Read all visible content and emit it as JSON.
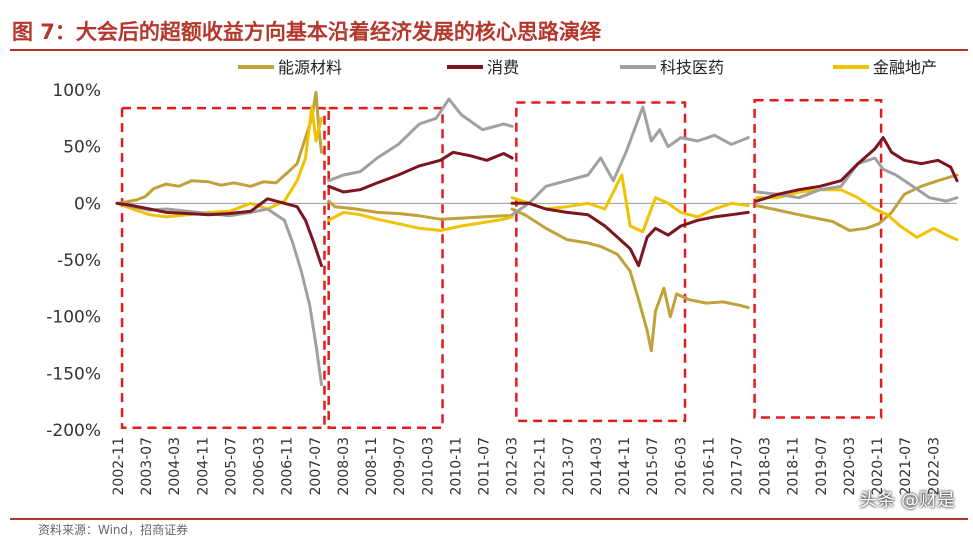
{
  "title": "图 7：大会后的超额收益方向基本沿着经济发展的核心思路演绎",
  "source": "资料来源：Wind，招商证券",
  "watermark": "头条 @财是",
  "chart_data": {
    "type": "line",
    "title": "图 7：大会后的超额收益方向基本沿着经济发展的核心思路演绎",
    "xlabel": "",
    "ylabel": "",
    "ylim": [
      -200,
      100
    ],
    "yticks": [
      100,
      50,
      0,
      -50,
      -100,
      -150,
      -200
    ],
    "ytick_labels": [
      "100%",
      "50%",
      "0%",
      "-50%",
      "-100%",
      "-150%",
      "-200%"
    ],
    "x_range": [
      2002.83,
      2022.75
    ],
    "xtick_labels": [
      "2002-11",
      "2003-07",
      "2004-03",
      "2004-11",
      "2005-07",
      "2006-03",
      "2006-11",
      "2007-07",
      "2008-03",
      "2008-11",
      "2009-07",
      "2010-03",
      "2010-11",
      "2011-07",
      "2012-03",
      "2012-11",
      "2013-07",
      "2014-03",
      "2014-11",
      "2015-07",
      "2016-03",
      "2016-11",
      "2017-07",
      "2018-03",
      "2018-11",
      "2019-07",
      "2020-03",
      "2020-11",
      "2021-07",
      "2022-03"
    ],
    "legend_position": "top",
    "series": [
      {
        "name": "能源材料",
        "color": "#c1a13a",
        "segments": [
          [
            [
              2002.83,
              0
            ],
            [
              2003.0,
              1
            ],
            [
              2003.3,
              3
            ],
            [
              2003.5,
              6
            ],
            [
              2003.7,
              13
            ],
            [
              2004.0,
              17
            ],
            [
              2004.3,
              15
            ],
            [
              2004.6,
              20
            ],
            [
              2005.0,
              19
            ],
            [
              2005.3,
              16
            ],
            [
              2005.6,
              18
            ],
            [
              2006.0,
              15
            ],
            [
              2006.3,
              19
            ],
            [
              2006.6,
              18
            ],
            [
              2006.9,
              28
            ],
            [
              2007.1,
              35
            ],
            [
              2007.3,
              58
            ],
            [
              2007.45,
              75
            ],
            [
              2007.55,
              98
            ],
            [
              2007.62,
              65
            ],
            [
              2007.68,
              45
            ]
          ],
          [
            [
              2007.85,
              2
            ],
            [
              2008.0,
              -3
            ],
            [
              2008.5,
              -5
            ],
            [
              2009.0,
              -8
            ],
            [
              2009.5,
              -9
            ],
            [
              2010.0,
              -11
            ],
            [
              2010.5,
              -14
            ],
            [
              2011.0,
              -13
            ],
            [
              2011.5,
              -12
            ],
            [
              2012.0,
              -11
            ],
            [
              2012.2,
              -11
            ]
          ],
          [
            [
              2012.2,
              -5
            ],
            [
              2012.5,
              -10
            ],
            [
              2013.0,
              -22
            ],
            [
              2013.5,
              -32
            ],
            [
              2014.0,
              -35
            ],
            [
              2014.3,
              -38
            ],
            [
              2014.7,
              -45
            ],
            [
              2015.0,
              -60
            ],
            [
              2015.2,
              -85
            ],
            [
              2015.4,
              -112
            ],
            [
              2015.5,
              -130
            ],
            [
              2015.6,
              -95
            ],
            [
              2015.8,
              -75
            ],
            [
              2015.95,
              -100
            ],
            [
              2016.1,
              -80
            ],
            [
              2016.4,
              -85
            ],
            [
              2016.8,
              -88
            ],
            [
              2017.2,
              -87
            ],
            [
              2017.6,
              -90
            ],
            [
              2017.8,
              -92
            ]
          ],
          [
            [
              2018.0,
              -2
            ],
            [
              2018.5,
              -6
            ],
            [
              2019.0,
              -10
            ],
            [
              2019.4,
              -13
            ],
            [
              2019.8,
              -16
            ],
            [
              2020.2,
              -24
            ],
            [
              2020.6,
              -22
            ],
            [
              2020.9,
              -18
            ],
            [
              2021.2,
              -8
            ],
            [
              2021.5,
              8
            ],
            [
              2021.9,
              15
            ],
            [
              2022.3,
              20
            ],
            [
              2022.75,
              25
            ]
          ]
        ]
      },
      {
        "name": "消费",
        "color": "#7b1620",
        "segments": [
          [
            [
              2002.83,
              0
            ],
            [
              2003.2,
              -2
            ],
            [
              2003.6,
              -5
            ],
            [
              2004.0,
              -8
            ],
            [
              2004.5,
              -9
            ],
            [
              2005.0,
              -10
            ],
            [
              2005.5,
              -9
            ],
            [
              2006.0,
              -7
            ],
            [
              2006.4,
              4
            ],
            [
              2006.8,
              0
            ],
            [
              2007.1,
              -3
            ],
            [
              2007.3,
              -15
            ],
            [
              2007.5,
              -35
            ],
            [
              2007.68,
              -55
            ]
          ],
          [
            [
              2007.85,
              15
            ],
            [
              2008.2,
              10
            ],
            [
              2008.6,
              12
            ],
            [
              2009.0,
              18
            ],
            [
              2009.5,
              25
            ],
            [
              2010.0,
              33
            ],
            [
              2010.5,
              38
            ],
            [
              2010.8,
              45
            ],
            [
              2011.2,
              42
            ],
            [
              2011.6,
              38
            ],
            [
              2012.0,
              44
            ],
            [
              2012.2,
              40
            ]
          ],
          [
            [
              2012.2,
              0
            ],
            [
              2012.6,
              0
            ],
            [
              2013.0,
              -5
            ],
            [
              2013.5,
              -8
            ],
            [
              2014.0,
              -10
            ],
            [
              2014.4,
              -20
            ],
            [
              2014.7,
              -30
            ],
            [
              2015.0,
              -40
            ],
            [
              2015.2,
              -55
            ],
            [
              2015.4,
              -30
            ],
            [
              2015.6,
              -22
            ],
            [
              2015.9,
              -28
            ],
            [
              2016.2,
              -20
            ],
            [
              2016.6,
              -15
            ],
            [
              2017.0,
              -12
            ],
            [
              2017.4,
              -10
            ],
            [
              2017.8,
              -8
            ]
          ],
          [
            [
              2018.0,
              2
            ],
            [
              2018.5,
              8
            ],
            [
              2019.0,
              12
            ],
            [
              2019.5,
              15
            ],
            [
              2020.0,
              20
            ],
            [
              2020.4,
              35
            ],
            [
              2020.8,
              48
            ],
            [
              2021.0,
              58
            ],
            [
              2021.2,
              45
            ],
            [
              2021.5,
              38
            ],
            [
              2021.9,
              35
            ],
            [
              2022.3,
              38
            ],
            [
              2022.6,
              32
            ],
            [
              2022.75,
              20
            ]
          ]
        ]
      },
      {
        "name": "科技医药",
        "color": "#a0a0a0",
        "segments": [
          [
            [
              2002.83,
              0
            ],
            [
              2003.2,
              -3
            ],
            [
              2003.6,
              -6
            ],
            [
              2004.0,
              -5
            ],
            [
              2004.5,
              -7
            ],
            [
              2005.0,
              -9
            ],
            [
              2005.5,
              -11
            ],
            [
              2006.0,
              -8
            ],
            [
              2006.4,
              -5
            ],
            [
              2006.8,
              -15
            ],
            [
              2007.0,
              -35
            ],
            [
              2007.2,
              -60
            ],
            [
              2007.4,
              -90
            ],
            [
              2007.55,
              -125
            ],
            [
              2007.68,
              -160
            ]
          ],
          [
            [
              2007.85,
              20
            ],
            [
              2008.2,
              25
            ],
            [
              2008.6,
              28
            ],
            [
              2009.0,
              40
            ],
            [
              2009.5,
              52
            ],
            [
              2010.0,
              70
            ],
            [
              2010.4,
              75
            ],
            [
              2010.7,
              92
            ],
            [
              2011.0,
              78
            ],
            [
              2011.5,
              65
            ],
            [
              2012.0,
              70
            ],
            [
              2012.2,
              68
            ]
          ],
          [
            [
              2012.2,
              -10
            ],
            [
              2012.6,
              0
            ],
            [
              2013.0,
              15
            ],
            [
              2013.5,
              20
            ],
            [
              2014.0,
              25
            ],
            [
              2014.3,
              40
            ],
            [
              2014.6,
              20
            ],
            [
              2014.9,
              45
            ],
            [
              2015.1,
              65
            ],
            [
              2015.3,
              85
            ],
            [
              2015.5,
              55
            ],
            [
              2015.7,
              65
            ],
            [
              2015.9,
              50
            ],
            [
              2016.2,
              58
            ],
            [
              2016.6,
              55
            ],
            [
              2017.0,
              60
            ],
            [
              2017.4,
              52
            ],
            [
              2017.8,
              58
            ]
          ],
          [
            [
              2018.0,
              10
            ],
            [
              2018.5,
              8
            ],
            [
              2019.0,
              5
            ],
            [
              2019.5,
              12
            ],
            [
              2020.0,
              15
            ],
            [
              2020.4,
              35
            ],
            [
              2020.8,
              40
            ],
            [
              2021.0,
              30
            ],
            [
              2021.3,
              25
            ],
            [
              2021.7,
              15
            ],
            [
              2022.1,
              5
            ],
            [
              2022.5,
              2
            ],
            [
              2022.75,
              5
            ]
          ]
        ]
      },
      {
        "name": "金融地产",
        "color": "#f2c200",
        "segments": [
          [
            [
              2002.83,
              0
            ],
            [
              2003.2,
              -5
            ],
            [
              2003.6,
              -10
            ],
            [
              2004.0,
              -12
            ],
            [
              2004.5,
              -10
            ],
            [
              2005.0,
              -8
            ],
            [
              2005.5,
              -7
            ],
            [
              2006.0,
              0
            ],
            [
              2006.4,
              -5
            ],
            [
              2006.8,
              2
            ],
            [
              2007.1,
              20
            ],
            [
              2007.3,
              40
            ],
            [
              2007.45,
              85
            ],
            [
              2007.55,
              55
            ],
            [
              2007.68,
              75
            ]
          ],
          [
            [
              2007.85,
              -15
            ],
            [
              2008.2,
              -8
            ],
            [
              2008.6,
              -10
            ],
            [
              2009.0,
              -14
            ],
            [
              2009.5,
              -18
            ],
            [
              2010.0,
              -22
            ],
            [
              2010.5,
              -24
            ],
            [
              2011.0,
              -20
            ],
            [
              2011.5,
              -17
            ],
            [
              2012.0,
              -14
            ],
            [
              2012.2,
              -12
            ]
          ],
          [
            [
              2012.2,
              5
            ],
            [
              2012.6,
              0
            ],
            [
              2013.0,
              -5
            ],
            [
              2013.5,
              -3
            ],
            [
              2014.0,
              0
            ],
            [
              2014.4,
              -5
            ],
            [
              2014.8,
              25
            ],
            [
              2015.0,
              -20
            ],
            [
              2015.3,
              -25
            ],
            [
              2015.6,
              5
            ],
            [
              2015.9,
              0
            ],
            [
              2016.2,
              -8
            ],
            [
              2016.6,
              -12
            ],
            [
              2017.0,
              -5
            ],
            [
              2017.4,
              0
            ],
            [
              2017.8,
              -2
            ]
          ],
          [
            [
              2018.0,
              5
            ],
            [
              2018.5,
              5
            ],
            [
              2019.0,
              10
            ],
            [
              2019.5,
              12
            ],
            [
              2020.0,
              12
            ],
            [
              2020.4,
              5
            ],
            [
              2020.8,
              -5
            ],
            [
              2021.1,
              -10
            ],
            [
              2021.4,
              -20
            ],
            [
              2021.8,
              -30
            ],
            [
              2022.2,
              -22
            ],
            [
              2022.5,
              -28
            ],
            [
              2022.75,
              -32
            ]
          ]
        ]
      }
    ],
    "annotations": [
      {
        "type": "dashed-box",
        "color": "#e21b1b",
        "x0": 2002.95,
        "x1": 2007.75,
        "y0": 84,
        "y1": -198
      },
      {
        "type": "dashed-box",
        "color": "#e21b1b",
        "x0": 2007.85,
        "x1": 2010.55,
        "y0": 84,
        "y1": -198
      },
      {
        "type": "dashed-box",
        "color": "#e21b1b",
        "x0": 2012.3,
        "x1": 2016.3,
        "y0": 89,
        "y1": -192
      },
      {
        "type": "dashed-box",
        "color": "#e21b1b",
        "x0": 2017.95,
        "x1": 2020.95,
        "y0": 91,
        "y1": -189
      }
    ]
  }
}
